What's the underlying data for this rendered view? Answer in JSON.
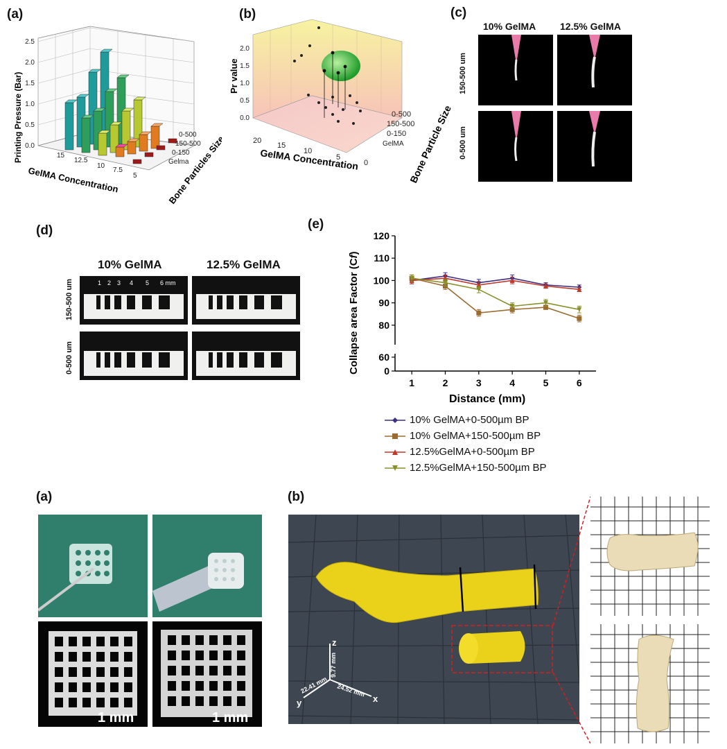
{
  "panel_labels": {
    "a_top": "(a)",
    "b_top": "(b)",
    "c_top": "(c)",
    "d_top": "(d)",
    "e_top": "(e)",
    "a_bottom": "(a)",
    "b_bottom": "(b)"
  },
  "panel_a": {
    "zlabel": "Printing Pressure (Bar)",
    "xlabel": "GelMA Concentration",
    "ylabel": "Bone Particles Size",
    "z_ticks": [
      "0.0",
      "0.5",
      "1.0",
      "1.5",
      "2.0",
      "2.5"
    ],
    "x_ticks": [
      "15",
      "12.5",
      "10",
      "7.5",
      "5"
    ],
    "y_ticks": [
      "0-500",
      "150-500",
      "0-150",
      "Gelma"
    ]
  },
  "panel_b": {
    "zlabel": "Pr value",
    "xlabel": "GelMA Concentration",
    "ylabel": "Bone Particle Size",
    "z_ticks": [
      "0.0",
      "0.5",
      "1.0",
      "1.5",
      "2.0"
    ],
    "x_ticks": [
      "20",
      "15",
      "10",
      "5",
      "0"
    ],
    "y_ticks": [
      "0-500",
      "150-500",
      "0-150",
      "GelMA"
    ]
  },
  "panel_c": {
    "col_headers": [
      "10% GelMA",
      "12.5% GelMA"
    ],
    "row_labels": [
      "150-500 um",
      "0-500 um"
    ]
  },
  "panel_d": {
    "col_headers": [
      "10% GelMA",
      "12.5% GelMA"
    ],
    "row_labels": [
      "150-500 um",
      "0-500 um"
    ],
    "scale_marks": [
      "1",
      "2",
      "3",
      "4",
      "5",
      "6 mm"
    ]
  },
  "chart_data": {
    "type": "line",
    "title": "",
    "xlabel": "Distance (mm)",
    "ylabel": "Collapse area Factor (C_f)",
    "ylabel_main": "Collapse area Factor (C",
    "ylabel_sub": "f",
    "ylabel_close": ")",
    "x": [
      1,
      2,
      3,
      4,
      5,
      6
    ],
    "x_tick_labels": [
      "1",
      "2",
      "3",
      "4",
      "5",
      "6"
    ],
    "y_ticks_upper": [
      80,
      90,
      100,
      110,
      120
    ],
    "y_tick_labels_upper": [
      "80",
      "90",
      "100",
      "110",
      "120"
    ],
    "y_ticks_lower": [
      0,
      60
    ],
    "y_tick_labels_lower": [
      "0",
      "60"
    ],
    "axis_break": [
      0,
      60,
      75,
      120
    ],
    "series": [
      {
        "name": "10% GelMA+0-500µm BP",
        "color": "#3d2d80",
        "marker": "diamond",
        "values": [
          100,
          102,
          99,
          101,
          98,
          97
        ],
        "errors": [
          1.5,
          1.5,
          1.5,
          1.5,
          1,
          1
        ]
      },
      {
        "name": "10% GelMA+150-500µm BP",
        "color": "#9c6b32",
        "marker": "square",
        "values": [
          101,
          97.5,
          85.5,
          87,
          88,
          83
        ],
        "errors": [
          1.5,
          1.5,
          1.5,
          1.5,
          1,
          1.5
        ]
      },
      {
        "name": "12.5%GelMA+0-500µm BP",
        "color": "#c0392b",
        "marker": "triangle",
        "values": [
          100,
          101,
          98,
          100,
          97.5,
          96
        ],
        "errors": [
          1.5,
          1.5,
          1.5,
          1.5,
          1,
          1
        ]
      },
      {
        "name": "12.5%GelMA+150-500µm BP",
        "color": "#8a8f2a",
        "marker": "triangle-down",
        "values": [
          101,
          99,
          96,
          88.5,
          90,
          87
        ],
        "errors": [
          1.5,
          1.5,
          1.5,
          1.5,
          1.5,
          1.5
        ]
      }
    ],
    "legend_placement": "bottom"
  },
  "bottom_a": {
    "scale_text": [
      "1 mm",
      "1 mm"
    ]
  },
  "bottom_b": {
    "axis_z": "z",
    "axis_y": "y",
    "axis_x": "x",
    "dim_z": "9.77 mm",
    "dim_y": "22.41 mm",
    "dim_x": "24.52 mm"
  }
}
